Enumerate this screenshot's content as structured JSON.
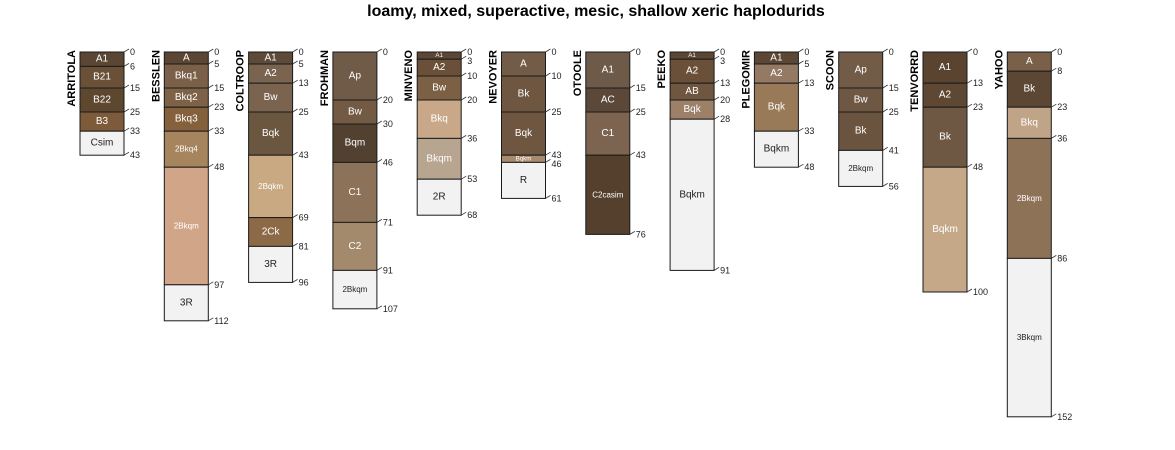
{
  "chart_data": {
    "type": "soil-profile-sketch",
    "title": "loamy, mixed, superactive, mesic, shallow xeric haplodurids",
    "depth_unit": "cm",
    "profiles": [
      {
        "name": "ARRITOLA",
        "horizons": [
          {
            "name": "A1",
            "top": 0,
            "bottom": 6,
            "color": "#5a4633"
          },
          {
            "name": "B21",
            "top": 6,
            "bottom": 15,
            "color": "#6b5038"
          },
          {
            "name": "B22",
            "top": 15,
            "bottom": 25,
            "color": "#5e472f"
          },
          {
            "name": "B3",
            "top": 25,
            "bottom": 33,
            "color": "#7d5a3a"
          },
          {
            "name": "Csim",
            "top": 33,
            "bottom": 43,
            "color": "#f2f2f2"
          }
        ]
      },
      {
        "name": "BESSLEN",
        "horizons": [
          {
            "name": "A",
            "top": 0,
            "bottom": 5,
            "color": "#5a4633"
          },
          {
            "name": "Bkq1",
            "top": 5,
            "bottom": 15,
            "color": "#7a6048"
          },
          {
            "name": "Bkq2",
            "top": 15,
            "bottom": 23,
            "color": "#7e6247"
          },
          {
            "name": "Bkq3",
            "top": 23,
            "bottom": 33,
            "color": "#85603d"
          },
          {
            "name": "2Bkq4",
            "top": 33,
            "bottom": 48,
            "color": "#a5845e"
          },
          {
            "name": "2Bkqm",
            "top": 48,
            "bottom": 97,
            "color": "#d1a688"
          },
          {
            "name": "3R",
            "top": 97,
            "bottom": 112,
            "color": "#f2f2f2"
          }
        ]
      },
      {
        "name": "COLTROOP",
        "horizons": [
          {
            "name": "A1",
            "top": 0,
            "bottom": 5,
            "color": "#5e4a38"
          },
          {
            "name": "A2",
            "top": 5,
            "bottom": 13,
            "color": "#7a6450"
          },
          {
            "name": "Bw",
            "top": 13,
            "bottom": 25,
            "color": "#7a6450"
          },
          {
            "name": "Bqk",
            "top": 25,
            "bottom": 43,
            "color": "#6b5640"
          },
          {
            "name": "2Bqkm",
            "top": 43,
            "bottom": 69,
            "color": "#c8a982"
          },
          {
            "name": "2Ck",
            "top": 69,
            "bottom": 81,
            "color": "#8c6a48"
          },
          {
            "name": "3R",
            "top": 81,
            "bottom": 96,
            "color": "#f2f2f2"
          }
        ]
      },
      {
        "name": "FROHMAN",
        "horizons": [
          {
            "name": "Ap",
            "top": 0,
            "bottom": 20,
            "color": "#705a48"
          },
          {
            "name": "Bw",
            "top": 20,
            "bottom": 30,
            "color": "#725a44"
          },
          {
            "name": "Bqm",
            "top": 30,
            "bottom": 46,
            "color": "#524030"
          },
          {
            "name": "C1",
            "top": 46,
            "bottom": 71,
            "color": "#8c7258"
          },
          {
            "name": "C2",
            "top": 71,
            "bottom": 91,
            "color": "#a48a6c"
          },
          {
            "name": "2Bkqm",
            "top": 91,
            "bottom": 107,
            "color": "#f2f2f2"
          }
        ]
      },
      {
        "name": "MINVENO",
        "horizons": [
          {
            "name": "A1",
            "top": 0,
            "bottom": 3,
            "color": "#5c4634"
          },
          {
            "name": "A2",
            "top": 3,
            "bottom": 10,
            "color": "#6a5038"
          },
          {
            "name": "Bw",
            "top": 10,
            "bottom": 20,
            "color": "#7c6044"
          },
          {
            "name": "Bkq",
            "top": 20,
            "bottom": 36,
            "color": "#c8a888"
          },
          {
            "name": "Bkqm",
            "top": 36,
            "bottom": 53,
            "color": "#b8a590"
          },
          {
            "name": "2R",
            "top": 53,
            "bottom": 68,
            "color": "#f2f2f2"
          }
        ]
      },
      {
        "name": "NEVOYER",
        "horizons": [
          {
            "name": "A",
            "top": 0,
            "bottom": 10,
            "color": "#725c48"
          },
          {
            "name": "Bk",
            "top": 10,
            "bottom": 25,
            "color": "#6e5640"
          },
          {
            "name": "Bqk",
            "top": 25,
            "bottom": 43,
            "color": "#6e5640"
          },
          {
            "name": "Bqkm",
            "top": 43,
            "bottom": 46,
            "color": "#a88a6c"
          },
          {
            "name": "R",
            "top": 46,
            "bottom": 61,
            "color": "#f2f2f2"
          }
        ]
      },
      {
        "name": "OTOOLE",
        "horizons": [
          {
            "name": "A1",
            "top": 0,
            "bottom": 15,
            "color": "#6e5a48"
          },
          {
            "name": "AC",
            "top": 15,
            "bottom": 25,
            "color": "#5c4838"
          },
          {
            "name": "C1",
            "top": 25,
            "bottom": 43,
            "color": "#7c6450"
          },
          {
            "name": "C2casim",
            "top": 43,
            "bottom": 76,
            "color": "#54402c"
          }
        ]
      },
      {
        "name": "PEEKO",
        "horizons": [
          {
            "name": "A1",
            "top": 0,
            "bottom": 3,
            "color": "#5c4634"
          },
          {
            "name": "A2",
            "top": 3,
            "bottom": 13,
            "color": "#6a5038"
          },
          {
            "name": "AB",
            "top": 13,
            "bottom": 20,
            "color": "#6e5640"
          },
          {
            "name": "Bqk",
            "top": 20,
            "bottom": 28,
            "color": "#9c8068"
          },
          {
            "name": "Bqkm",
            "top": 28,
            "bottom": 91,
            "color": "#f2f2f2"
          }
        ]
      },
      {
        "name": "PLEGOMIR",
        "horizons": [
          {
            "name": "A1",
            "top": 0,
            "bottom": 5,
            "color": "#5c4634"
          },
          {
            "name": "A2",
            "top": 5,
            "bottom": 13,
            "color": "#947a64"
          },
          {
            "name": "Bqk",
            "top": 13,
            "bottom": 33,
            "color": "#987a58"
          },
          {
            "name": "Bqkm",
            "top": 33,
            "bottom": 48,
            "color": "#f2f2f2"
          }
        ]
      },
      {
        "name": "SCOON",
        "horizons": [
          {
            "name": "Ap",
            "top": 0,
            "bottom": 15,
            "color": "#725c48"
          },
          {
            "name": "Bw",
            "top": 15,
            "bottom": 25,
            "color": "#6e5844"
          },
          {
            "name": "Bk",
            "top": 25,
            "bottom": 41,
            "color": "#6a5440"
          },
          {
            "name": "2Bkqm",
            "top": 41,
            "bottom": 56,
            "color": "#f2f2f2"
          }
        ]
      },
      {
        "name": "TENVORRD",
        "horizons": [
          {
            "name": "A1",
            "top": 0,
            "bottom": 13,
            "color": "#5a4430"
          },
          {
            "name": "A2",
            "top": 13,
            "bottom": 23,
            "color": "#5e4834"
          },
          {
            "name": "Bk",
            "top": 23,
            "bottom": 48,
            "color": "#6e5844"
          },
          {
            "name": "Bqkm",
            "top": 48,
            "bottom": 100,
            "color": "#c4a888"
          }
        ]
      },
      {
        "name": "YAHOO",
        "horizons": [
          {
            "name": "A",
            "top": 0,
            "bottom": 8,
            "color": "#7a6048"
          },
          {
            "name": "Bk",
            "top": 8,
            "bottom": 23,
            "color": "#5c4634"
          },
          {
            "name": "Bkq",
            "top": 23,
            "bottom": 36,
            "color": "#c0a488"
          },
          {
            "name": "2Bkqm",
            "top": 36,
            "bottom": 86,
            "color": "#8e7258"
          },
          {
            "name": "3Bkqm",
            "top": 86,
            "bottom": 152,
            "color": "#f2f2f2"
          }
        ]
      }
    ]
  }
}
